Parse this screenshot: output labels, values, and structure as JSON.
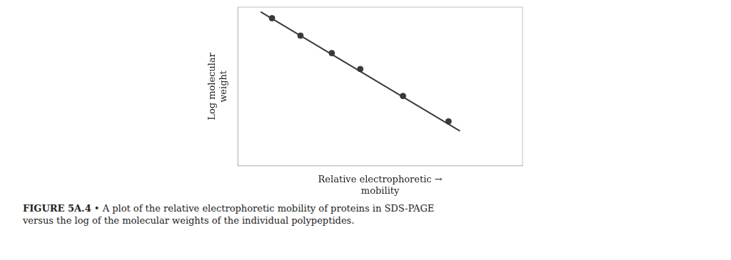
{
  "chart_data": {
    "type": "scatter",
    "xlabel": "Relative electrophoretic →\nmobility",
    "ylabel": "Log molecular\nweight",
    "annotations": [
      "FIGURE 5A.4",
      "• A plot of the relative electrophoretic mobility of proteins in SDS-PAGE",
      "versus the log of the molecular weights of the individual polypeptides."
    ],
    "series": [
      {
        "type": "line",
        "x": [
          0.08,
          0.78
        ],
        "values": [
          0.97,
          0.22
        ],
        "color": "#3a3a3a"
      },
      {
        "type": "scatter",
        "x": [
          0.12,
          0.22,
          0.33,
          0.43,
          0.58,
          0.74
        ],
        "values": [
          0.93,
          0.82,
          0.71,
          0.61,
          0.44,
          0.28
        ],
        "color": "#3a3a3a"
      }
    ],
    "xlim": [
      0,
      1
    ],
    "ylim": [
      0,
      1
    ],
    "xticks": [],
    "yticks": [],
    "tick_labels": false,
    "grid": false,
    "legend": false
  }
}
